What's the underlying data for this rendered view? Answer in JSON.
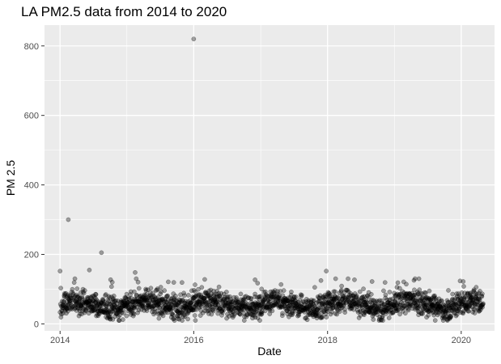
{
  "chart_data": {
    "type": "scatter",
    "title": "LA PM2.5 data from 2014 to 2020",
    "xlabel": "Date",
    "ylabel": "PM 2.5",
    "x_ticks": [
      "2014",
      "2016",
      "2018",
      "2020"
    ],
    "y_ticks": [
      "0",
      "200",
      "400",
      "600",
      "800"
    ],
    "xlim": [
      "2013-10-08",
      "2020-07-01"
    ],
    "ylim": [
      -20,
      860
    ],
    "grid": true,
    "background": "#ebebeb",
    "grid_color": "#ffffff",
    "point_color": "#000000",
    "point_alpha": 0.35,
    "highlighted_points": [
      {
        "x": "2014-01-01",
        "y": 152
      },
      {
        "x": "2014-02-15",
        "y": 300
      },
      {
        "x": "2014-06-10",
        "y": 155
      },
      {
        "x": "2014-08-15",
        "y": 205
      },
      {
        "x": "2015-02-15",
        "y": 148
      },
      {
        "x": "2016-01-01",
        "y": 820
      },
      {
        "x": "2016-03-01",
        "y": 128
      },
      {
        "x": "2016-12-01",
        "y": 127
      },
      {
        "x": "2017-12-25",
        "y": 152
      },
      {
        "x": "2018-09-01",
        "y": 122
      },
      {
        "x": "2020-01-15",
        "y": 108
      }
    ],
    "daily_pattern": {
      "start": "2014-01-01",
      "end": "2020-04-30",
      "typical_range": [
        15,
        110
      ],
      "typical_center": 55
    }
  }
}
